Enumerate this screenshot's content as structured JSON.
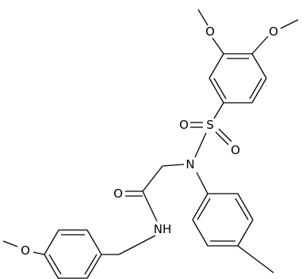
{
  "atoms": [
    {
      "label": "O"
    },
    {
      "label": "O"
    },
    {
      "label": "S"
    },
    {
      "label": "O"
    },
    {
      "label": "O"
    },
    {
      "label": "N"
    },
    {
      "label": "O"
    },
    {
      "label": "NH"
    },
    {
      "label": "O"
    }
  ]
}
